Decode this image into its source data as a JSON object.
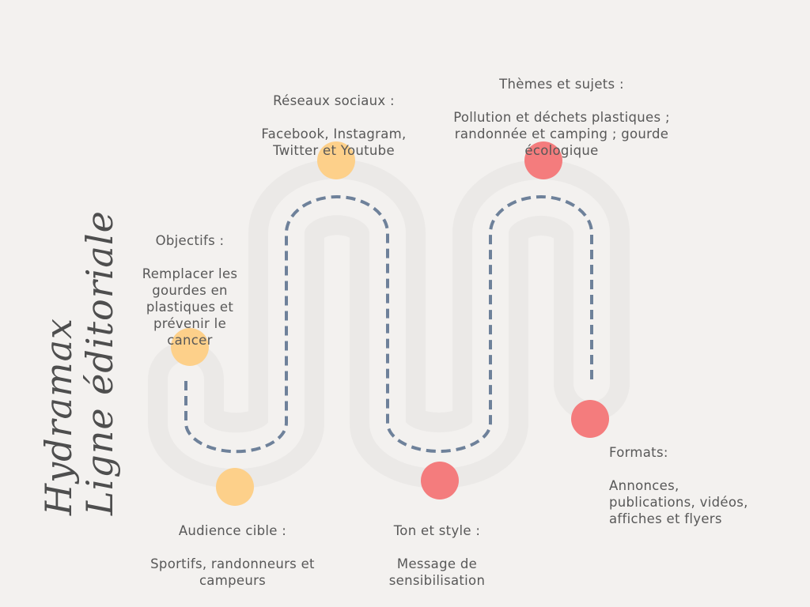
{
  "title": {
    "line1": "Hydramax",
    "line2": "Ligne éditoriale"
  },
  "colors": {
    "background": "#f3f1ef",
    "road_fill": "#ecebe9",
    "road_dash": "#6e819a",
    "dot_yellow": "#fdd08a",
    "dot_red": "#f47c7d",
    "text": "#585858"
  },
  "steps": [
    {
      "title": "Objectifs :",
      "text": "Remplacer les\ngourdes en\nplastiques et\nprévenir le\ncancer",
      "color": "yellow"
    },
    {
      "title": "Audience cible :",
      "text": "Sportifs, randonneurs et\ncampeurs",
      "color": "yellow"
    },
    {
      "title": "Réseaux sociaux :",
      "text": "Facebook, Instagram,\nTwitter et Youtube",
      "color": "yellow"
    },
    {
      "title": "Ton et style :",
      "text": "Message de\nsensibilisation",
      "color": "red"
    },
    {
      "title": "Thèmes et sujets :",
      "text": "Pollution et déchets plastiques ;\nrandonnée et camping ; gourde\nécologique",
      "color": "red"
    },
    {
      "title": "Formats:",
      "text": "Annonces,\npublications, vidéos,\naffiches et flyers",
      "color": "red"
    }
  ]
}
